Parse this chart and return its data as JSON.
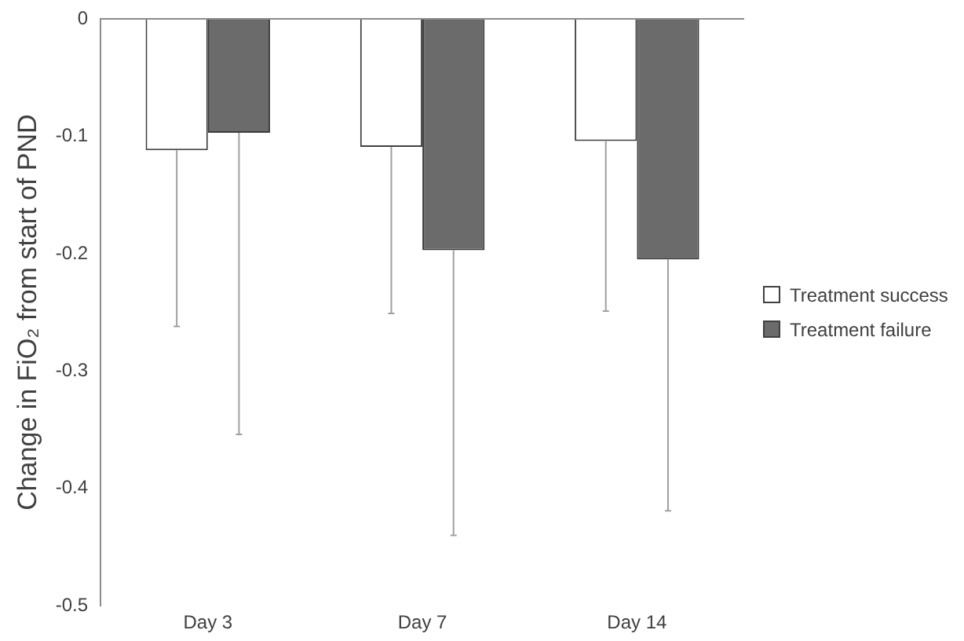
{
  "chart_data": {
    "type": "bar",
    "ylabel": "Change in FiO₂ from start of PND",
    "categories": [
      "Day 3",
      "Day 7",
      "Day 14"
    ],
    "series": [
      {
        "name": "Treatment success",
        "color": "#ffffff",
        "values": [
          -0.112,
          -0.109,
          -0.104
        ],
        "errors": [
          [
            -0.262,
            -0.112
          ],
          [
            -0.251,
            -0.109
          ],
          [
            -0.249,
            -0.104
          ]
        ]
      },
      {
        "name": "Treatment failure",
        "color": "#6b6b6b",
        "values": [
          -0.097,
          -0.197,
          -0.205
        ],
        "errors": [
          [
            -0.354,
            -0.097
          ],
          [
            -0.44,
            -0.197
          ],
          [
            -0.419,
            -0.205
          ]
        ]
      }
    ],
    "ylim": [
      -0.5,
      0
    ],
    "yticks": [
      -0.5,
      -0.4,
      -0.3,
      -0.2,
      -0.1,
      0
    ],
    "legend": "right",
    "grid": false
  }
}
